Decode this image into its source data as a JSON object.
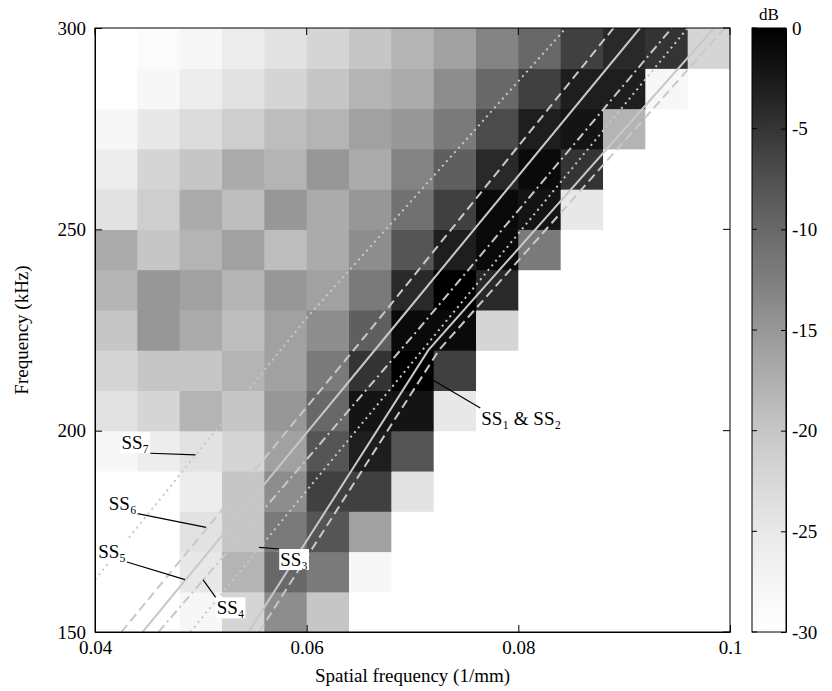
{
  "chart_data": {
    "type": "heatmap",
    "x_label": "Spatial frequency (1/mm)",
    "y_label": "Frequency (kHz)",
    "xlim": [
      0.04,
      0.1
    ],
    "ylim": [
      150,
      300
    ],
    "xticks": [
      0.04,
      0.06,
      0.08,
      0.1
    ],
    "yticks": [
      150,
      200,
      250,
      300
    ],
    "x": [
      0.042,
      0.046,
      0.05,
      0.054,
      0.058,
      0.062,
      0.066,
      0.07,
      0.074,
      0.078,
      0.082,
      0.086,
      0.09,
      0.094,
      0.098
    ],
    "y": [
      155,
      165,
      175,
      185,
      195,
      205,
      215,
      225,
      235,
      245,
      255,
      265,
      275,
      285,
      295
    ],
    "z": [
      [
        -30,
        -30,
        -28,
        -22,
        -14,
        -20,
        -30,
        -30,
        -30,
        -30,
        -30,
        -30,
        -30,
        -30,
        -30
      ],
      [
        -30,
        -30,
        -25,
        -18,
        -10,
        -12,
        -28,
        -30,
        -30,
        -30,
        -30,
        -30,
        -30,
        -30,
        -30
      ],
      [
        -30,
        -30,
        -24,
        -20,
        -12,
        -8,
        -16,
        -30,
        -30,
        -30,
        -30,
        -30,
        -30,
        -30,
        -30
      ],
      [
        -30,
        -30,
        -26,
        -20,
        -14,
        -6,
        -6,
        -24,
        -30,
        -30,
        -30,
        -30,
        -30,
        -30,
        -30
      ],
      [
        -28,
        -26,
        -24,
        -22,
        -16,
        -8,
        -3,
        -8,
        -30,
        -30,
        -30,
        -30,
        -30,
        -30,
        -30
      ],
      [
        -24,
        -22,
        -18,
        -20,
        -15,
        -10,
        -2,
        -2,
        -25,
        -30,
        -30,
        -30,
        -30,
        -30,
        -30
      ],
      [
        -22,
        -20,
        -20,
        -18,
        -16,
        -12,
        -5,
        0,
        -6,
        -30,
        -30,
        -30,
        -30,
        -30,
        -30
      ],
      [
        -20,
        -15,
        -17,
        -19,
        -16,
        -14,
        -9,
        -1,
        -1,
        -22,
        -30,
        -30,
        -30,
        -30,
        -30
      ],
      [
        -18,
        -15,
        -16,
        -18,
        -15,
        -16,
        -12,
        -4,
        0,
        -4,
        -30,
        -30,
        -30,
        -30,
        -30
      ],
      [
        -17,
        -20,
        -18,
        -16,
        -19,
        -17,
        -14,
        -8,
        -3,
        -1,
        -12,
        -30,
        -30,
        -30,
        -30
      ],
      [
        -24,
        -21,
        -17,
        -19,
        -15,
        -17,
        -15,
        -11,
        -6,
        -1,
        -2,
        -25,
        -30,
        -30,
        -30
      ],
      [
        -26,
        -22,
        -20,
        -17,
        -18,
        -15,
        -17,
        -13,
        -9,
        -4,
        -1,
        -5,
        -30,
        -30,
        -30
      ],
      [
        -28,
        -25,
        -23,
        -21,
        -19,
        -18,
        -16,
        -15,
        -12,
        -7,
        -3,
        -2,
        -18,
        -30,
        -30
      ],
      [
        -30,
        -28,
        -26,
        -24,
        -22,
        -20,
        -18,
        -17,
        -14,
        -10,
        -6,
        -3,
        -3,
        -28,
        -30
      ],
      [
        -30,
        -29,
        -28,
        -26,
        -24,
        -22,
        -20,
        -18,
        -16,
        -13,
        -10,
        -6,
        -4,
        -5,
        -22
      ]
    ],
    "colorbar_label": "dB",
    "colorbar_lim": [
      -30,
      0
    ],
    "colorbar_ticks": [
      0,
      -5,
      -10,
      -15,
      -20,
      -25,
      -30
    ],
    "series": [
      {
        "type": "line",
        "color": "#c8c8c8",
        "line_style": "dashed",
        "x": [
          0.0555,
          0.0725,
          0.0995
        ],
        "values": [
          150,
          220,
          300
        ]
      },
      {
        "type": "line",
        "color": "#c8c8c8",
        "line_style": "solid",
        "x": [
          0.0545,
          0.0715,
          0.0985
        ],
        "values": [
          150,
          220,
          300
        ]
      },
      {
        "type": "line",
        "color": "#c8c8c8",
        "line_style": "dotted",
        "x": [
          0.049,
          0.0725,
          0.096
        ],
        "values": [
          150,
          225,
          300
        ]
      },
      {
        "type": "line",
        "color": "#c8c8c8",
        "line_style": "dashdot",
        "x": [
          0.046,
          0.0705,
          0.0945
        ],
        "values": [
          150,
          225,
          300
        ]
      },
      {
        "type": "line",
        "color": "#c8c8c8",
        "line_style": "solid",
        "x": [
          0.0445,
          0.068,
          0.0915
        ],
        "values": [
          150,
          225,
          300
        ]
      },
      {
        "type": "line",
        "color": "#c8c8c8",
        "line_style": "dashed",
        "x": [
          0.0425,
          0.066,
          0.089
        ],
        "values": [
          150,
          225,
          300
        ]
      },
      {
        "type": "line",
        "color": "#c8c8c8",
        "line_style": "dotted",
        "x": [
          0.04,
          0.06,
          0.0845
        ],
        "values": [
          163,
          228,
          300
        ]
      }
    ],
    "annotations": [
      {
        "text": "SS₇",
        "x": 0.0425,
        "y": 197,
        "arrow_x": 0.0495,
        "arrow_y": 194
      },
      {
        "text": "SS₆",
        "x": 0.0413,
        "y": 182,
        "arrow_x": 0.0505,
        "arrow_y": 176
      },
      {
        "text": "SS₅",
        "x": 0.0403,
        "y": 170,
        "arrow_x": 0.0485,
        "arrow_y": 163
      },
      {
        "text": "SS₄",
        "x": 0.0515,
        "y": 156,
        "arrow_x": 0.0502,
        "arrow_y": 163
      },
      {
        "text": "SS₃",
        "x": 0.0575,
        "y": 168,
        "arrow_x": 0.0555,
        "arrow_y": 171
      },
      {
        "text": "SS₁ & SS₂",
        "x": 0.0765,
        "y": 203,
        "arrow_x": 0.071,
        "arrow_y": 214
      }
    ]
  }
}
